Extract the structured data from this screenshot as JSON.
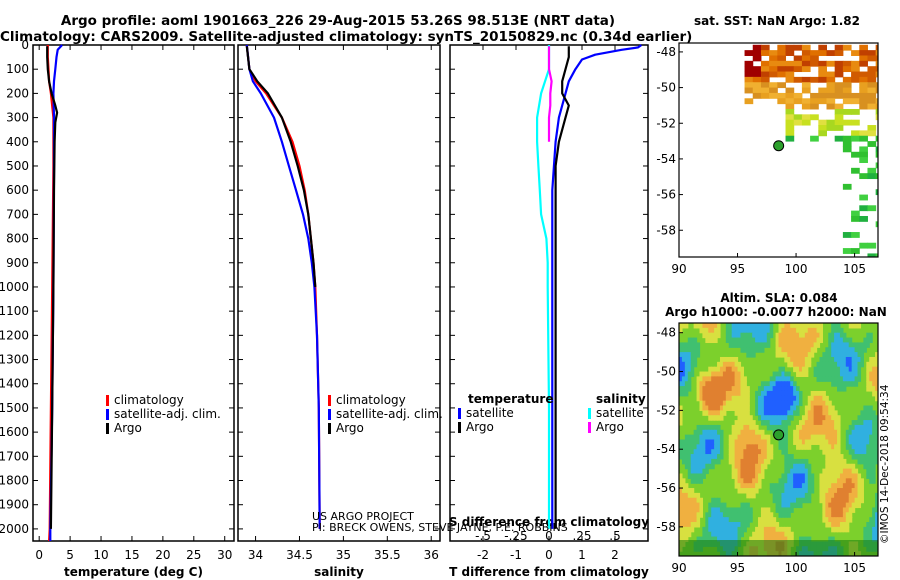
{
  "header": {
    "line1": "Argo profile: aoml 1901663_226 29-Aug-2015 53.26S 98.513E (NRT data)",
    "line2": "Climatology: CARS2009. Satellite-adjusted climatology: synTS_20150829.nc (0.34d earlier)"
  },
  "credits": {
    "project": "US ARGO PROJECT",
    "pi": "PI: BRECK OWENS, STEVE JAYNE, P.E. ROBBINS",
    "imos": "©IMOS 14-Dec-2018 09:54:34"
  },
  "colors": {
    "climatology": "#ff0000",
    "satellite": "#0000ff",
    "argo": "#000000",
    "satellite_salinity": "#00ffff",
    "argo_salinity": "#ff00ff",
    "argo_marker": "#2ca02c"
  },
  "chart_data": [
    {
      "id": "temperature",
      "type": "line",
      "xlabel": "temperature (deg C)",
      "ylabel": "",
      "xlim": [
        -1,
        31.5
      ],
      "ylim": [
        2050,
        0
      ],
      "xticks": [
        0,
        5,
        10,
        15,
        20,
        25,
        30
      ],
      "yticks": [
        0,
        100,
        200,
        300,
        400,
        500,
        600,
        700,
        800,
        900,
        1000,
        1100,
        1200,
        1300,
        1400,
        1500,
        1600,
        1700,
        1800,
        1900,
        2000
      ],
      "legend": {
        "placement": "lower-right",
        "entries": [
          "climatology",
          "satellite-adj. clim.",
          "Argo"
        ]
      },
      "series": [
        {
          "name": "climatology",
          "color": "#ff0000",
          "depth": [
            0,
            50,
            100,
            150,
            200,
            300,
            500,
            1000,
            1500,
            2000,
            2050
          ],
          "values": [
            1.4,
            1.4,
            1.5,
            1.6,
            1.9,
            2.3,
            2.3,
            2.1,
            1.9,
            1.7,
            1.6
          ]
        },
        {
          "name": "satellite-adj. clim.",
          "color": "#0000ff",
          "depth": [
            0,
            20,
            50,
            100,
            150,
            200,
            300,
            500,
            1000,
            1500,
            2000,
            2050
          ],
          "values": [
            3.7,
            3.0,
            2.8,
            2.6,
            2.4,
            2.3,
            2.4,
            2.4,
            2.3,
            2.1,
            1.8,
            1.8
          ]
        },
        {
          "name": "Argo",
          "color": "#000000",
          "depth": [
            5,
            50,
            100,
            150,
            200,
            250,
            280,
            320,
            400,
            600,
            1000,
            1500,
            2000
          ],
          "values": [
            1.3,
            1.3,
            1.4,
            1.6,
            2.0,
            2.6,
            2.9,
            2.6,
            2.5,
            2.4,
            2.3,
            2.1,
            1.9
          ]
        }
      ]
    },
    {
      "id": "salinity",
      "type": "line",
      "xlabel": "salinity",
      "ylabel": "",
      "xlim": [
        33.8,
        36.1
      ],
      "ylim": [
        2050,
        0
      ],
      "xticks": [
        34,
        34.5,
        35,
        35.5,
        36
      ],
      "legend": {
        "placement": "lower-right",
        "entries": [
          "climatology",
          "satellite-adj. clim.",
          "Argo"
        ]
      },
      "series": [
        {
          "name": "climatology",
          "color": "#ff0000",
          "depth": [
            0,
            100,
            150,
            200,
            300,
            400,
            500,
            600,
            700,
            800,
            900,
            1000,
            1200,
            1500,
            2000
          ],
          "values": [
            33.9,
            33.93,
            34.0,
            34.12,
            34.3,
            34.42,
            34.5,
            34.56,
            34.6,
            34.63,
            34.66,
            34.68,
            34.7,
            34.72,
            34.73
          ]
        },
        {
          "name": "satellite-adj. clim.",
          "color": "#0000ff",
          "depth": [
            0,
            100,
            150,
            200,
            300,
            400,
            500,
            600,
            700,
            800,
            900,
            1000,
            1200,
            1500,
            2000
          ],
          "values": [
            33.9,
            33.93,
            33.97,
            34.06,
            34.21,
            34.3,
            34.38,
            34.46,
            34.54,
            34.6,
            34.64,
            34.67,
            34.7,
            34.72,
            34.73
          ]
        },
        {
          "name": "Argo",
          "color": "#000000",
          "depth": [
            5,
            100,
            150,
            200,
            250,
            300,
            400,
            500,
            600,
            700,
            800,
            900,
            1000
          ],
          "values": [
            33.9,
            33.93,
            34.02,
            34.14,
            34.22,
            34.3,
            34.4,
            34.48,
            34.55,
            34.6,
            34.63,
            34.66,
            34.68
          ]
        }
      ]
    },
    {
      "id": "difference",
      "type": "line",
      "xlabel": "T difference from climatology",
      "x2label": "S difference from climatology",
      "ylabel": "",
      "xlim": [
        -3,
        3
      ],
      "x2lim": [
        -0.75,
        0.75
      ],
      "ylim": [
        2050,
        0
      ],
      "xticks": [
        -2,
        -1,
        0,
        1,
        2
      ],
      "x2ticks": [
        -0.5,
        -0.25,
        0,
        0.25,
        0.5
      ],
      "legend_temperature": {
        "title": "temperature",
        "entries": [
          "satellite",
          "Argo"
        ]
      },
      "legend_salinity": {
        "title": "salinity",
        "entries": [
          "satellite",
          "Argo"
        ]
      },
      "series": [
        {
          "name": "satellite",
          "group": "temperature",
          "color": "#0000ff",
          "depth": [
            0,
            10,
            20,
            40,
            60,
            100,
            150,
            200,
            250,
            300,
            400,
            600,
            1000,
            1500,
            2000
          ],
          "values": [
            2.8,
            2.7,
            2.2,
            1.4,
            1.0,
            0.8,
            0.6,
            0.5,
            0.4,
            0.3,
            0.2,
            0.1,
            0.1,
            0.1,
            0.1
          ]
        },
        {
          "name": "Argo",
          "group": "temperature",
          "color": "#000000",
          "depth": [
            5,
            50,
            100,
            150,
            200,
            250,
            300,
            400,
            500,
            600,
            800,
            1000,
            1500,
            2000
          ],
          "values": [
            0.6,
            0.6,
            0.5,
            0.4,
            0.4,
            0.6,
            0.5,
            0.3,
            0.2,
            0.2,
            0.2,
            0.2,
            0.2,
            0.2
          ]
        },
        {
          "name": "satellite",
          "group": "salinity",
          "color": "#00ffff",
          "depth": [
            0,
            100,
            200,
            300,
            400,
            500,
            600,
            700,
            800,
            900,
            1000,
            1500,
            2000
          ],
          "values": [
            0.0,
            0.0,
            -0.06,
            -0.09,
            -0.09,
            -0.08,
            -0.07,
            -0.06,
            -0.02,
            -0.01,
            -0.01,
            0.0,
            0.0
          ]
        },
        {
          "name": "Argo",
          "group": "salinity",
          "color": "#ff00ff",
          "depth": [
            5,
            100,
            150,
            200,
            250,
            300,
            400
          ],
          "values": [
            0.0,
            0.0,
            0.02,
            0.01,
            0.01,
            0.0,
            0.0
          ]
        }
      ]
    },
    {
      "id": "sst-map",
      "type": "heatmap",
      "title": "sat. SST: NaN Argo: 1.82",
      "xlim": [
        90,
        107
      ],
      "ylim": [
        -59.5,
        -47.5
      ],
      "xticks": [
        90,
        95,
        100,
        105
      ],
      "yticks": [
        -48,
        -50,
        -52,
        -54,
        -56,
        -58
      ],
      "argo_position": {
        "lon": 98.513,
        "lat": -53.26
      }
    },
    {
      "id": "sla-map",
      "type": "heatmap",
      "title": "Altim. SLA: 0.084",
      "subtitle": "Argo h1000: -0.0077 h2000: NaN",
      "xlim": [
        90,
        107
      ],
      "ylim": [
        -59.5,
        -47.5
      ],
      "xticks": [
        90,
        95,
        100,
        105
      ],
      "yticks": [
        -48,
        -50,
        -52,
        -54,
        -56,
        -58
      ],
      "argo_position": {
        "lon": 98.513,
        "lat": -53.26
      }
    }
  ]
}
